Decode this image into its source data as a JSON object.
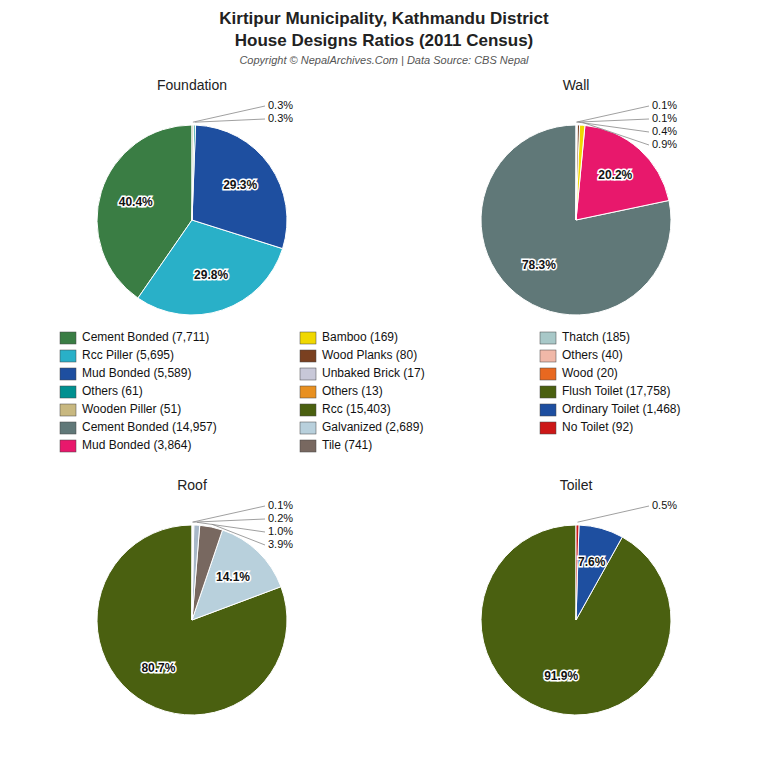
{
  "title": "Kirtipur Municipality, Kathmandu District",
  "subtitle": "House Designs Ratios (2011 Census)",
  "annotations": [
    "Copyright © NepalArchives.Com | Data Source: CBS Nepal"
  ],
  "legend_items": [
    {
      "label": "Cement Bonded (7,711)",
      "color": "#3a7d44"
    },
    {
      "label": "Rcc Piller (5,695)",
      "color": "#29b0c8"
    },
    {
      "label": "Mud Bonded (5,589)",
      "color": "#1e4fa0"
    },
    {
      "label": "Others (61)",
      "color": "#009090"
    },
    {
      "label": "Wooden Piller (51)",
      "color": "#c8b880"
    },
    {
      "label": "Cement Bonded (14,957)",
      "color": "#607878"
    },
    {
      "label": "Mud Bonded (3,864)",
      "color": "#e8186c"
    },
    {
      "label": "Bamboo (169)",
      "color": "#f0d800"
    },
    {
      "label": "Wood Planks (80)",
      "color": "#7a4020"
    },
    {
      "label": "Unbaked Brick (17)",
      "color": "#c8c8d8"
    },
    {
      "label": "Others (13)",
      "color": "#e89020"
    },
    {
      "label": "Rcc (15,403)",
      "color": "#4a6010"
    },
    {
      "label": "Galvanized (2,689)",
      "color": "#b8d0dc"
    },
    {
      "label": "Tile (741)",
      "color": "#786860"
    },
    {
      "label": "Thatch (185)",
      "color": "#a8c8c8"
    },
    {
      "label": "Others (40)",
      "color": "#f0b8a8"
    },
    {
      "label": "Wood (20)",
      "color": "#e86820"
    },
    {
      "label": "Flush Toilet (17,758)",
      "color": "#4a6010"
    },
    {
      "label": "Ordinary Toilet (1,468)",
      "color": "#1e4fa0"
    },
    {
      "label": "No Toilet (92)",
      "color": "#cc1818"
    }
  ],
  "chart_data": [
    {
      "type": "pie",
      "title": "Foundation",
      "values": [
        40.4,
        29.8,
        29.3,
        0.3,
        0.3
      ],
      "value_labels": [
        "40.4%",
        "29.8%",
        "29.3%",
        "0.3%",
        "0.3%"
      ],
      "colors": [
        "#3a7d44",
        "#29b0c8",
        "#1e4fa0",
        "#009090",
        "#c0c0a0"
      ],
      "data_labels": true
    },
    {
      "type": "pie",
      "title": "Wall",
      "values": [
        78.3,
        20.2,
        0.9,
        0.4,
        0.1,
        0.1
      ],
      "value_labels": [
        "78.3%",
        "20.2%",
        "0.9%",
        "0.4%",
        "0.1%",
        "0.1%"
      ],
      "colors": [
        "#607878",
        "#e8186c",
        "#f0d800",
        "#7a4020",
        "#b0c8c8",
        "#d8d8d8"
      ],
      "data_labels": true
    },
    {
      "type": "pie",
      "title": "Roof",
      "values": [
        80.7,
        14.1,
        3.9,
        1.0,
        0.2,
        0.1
      ],
      "value_labels": [
        "80.7%",
        "14.1%",
        "3.9%",
        "1.0%",
        "0.2%",
        "0.1%"
      ],
      "colors": [
        "#4a6010",
        "#b8d0dc",
        "#786860",
        "#a8b8c8",
        "#d0e0e8",
        "#e8f0f0"
      ],
      "data_labels": true
    },
    {
      "type": "pie",
      "title": "Toilet",
      "values": [
        91.9,
        7.6,
        0.5
      ],
      "value_labels": [
        "91.9%",
        "7.6%",
        "0.5%"
      ],
      "colors": [
        "#4a6010",
        "#1e4fa0",
        "#cc1818"
      ],
      "data_labels": true
    }
  ]
}
